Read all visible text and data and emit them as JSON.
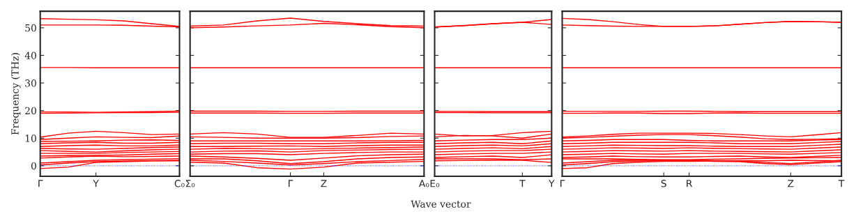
{
  "chart_data": [
    {
      "type": "line",
      "ylabel": "Frequency (THz)",
      "categories": [
        "Γ",
        null,
        "Y",
        null,
        null,
        "C₀"
      ],
      "ylim": [
        -3.8,
        56
      ],
      "yticks": [
        0,
        10,
        20,
        30,
        40,
        50
      ],
      "grid": false,
      "marker": "none",
      "line_style": "solid",
      "ref_lines": [
        {
          "axis": "y",
          "value": 0,
          "color": "#0000ff",
          "line_style": "dotted"
        }
      ],
      "series": [
        {
          "color": "#ff0000",
          "values": [
            53.3,
            53.1,
            52.9,
            52.5,
            51.5,
            50.5
          ]
        },
        {
          "color": "#ff0000",
          "values": [
            51.0,
            51.0,
            51.0,
            50.9,
            50.6,
            50.3
          ]
        },
        {
          "color": "#ff0000",
          "values": [
            35.6,
            35.6,
            35.5,
            35.5,
            35.5,
            35.5
          ]
        },
        {
          "color": "#ff0000",
          "values": [
            19.0,
            19.1,
            19.2,
            19.3,
            19.3,
            19.4
          ]
        },
        {
          "color": "#ff0000",
          "values": [
            19.5,
            19.5,
            19.4,
            19.5,
            19.6,
            19.8
          ]
        },
        {
          "color": "#ff0000",
          "values": [
            10.4,
            11.8,
            12.5,
            12.0,
            11.3,
            11.5
          ]
        },
        {
          "color": "#ff0000",
          "values": [
            9.5,
            10.0,
            10.5,
            10.3,
            10.2,
            10.8
          ]
        },
        {
          "color": "#ff0000",
          "values": [
            8.8,
            8.9,
            9.0,
            9.3,
            9.4,
            9.2
          ]
        },
        {
          "color": "#ff0000",
          "values": [
            8.0,
            8.3,
            8.5,
            8.2,
            8.2,
            8.5
          ]
        },
        {
          "color": "#ff0000",
          "values": [
            7.0,
            7.3,
            7.5,
            7.2,
            7.2,
            7.5
          ]
        },
        {
          "color": "#ff0000",
          "values": [
            6.3,
            6.1,
            6.0,
            6.3,
            6.6,
            6.8
          ]
        },
        {
          "color": "#ff0000",
          "values": [
            5.5,
            5.2,
            5.0,
            5.4,
            5.8,
            6.0
          ]
        },
        {
          "color": "#ff0000",
          "values": [
            4.5,
            4.5,
            4.5,
            4.8,
            5.0,
            5.2
          ]
        },
        {
          "color": "#ff0000",
          "values": [
            3.5,
            3.7,
            3.8,
            3.9,
            4.2,
            4.4
          ]
        },
        {
          "color": "#ff0000",
          "values": [
            2.8,
            3.2,
            3.5,
            3.3,
            3.4,
            3.5
          ]
        },
        {
          "color": "#ff0000",
          "values": [
            1.0,
            1.5,
            2.0,
            2.2,
            2.4,
            2.6
          ]
        },
        {
          "color": "#ff0000",
          "values": [
            0.3,
            1.0,
            1.5,
            1.7,
            1.9,
            2.0
          ]
        },
        {
          "color": "#ff0000",
          "values": [
            -1.0,
            -0.5,
            1.2,
            1.5,
            1.7,
            1.8
          ]
        }
      ]
    },
    {
      "type": "line",
      "xlabel": "Wave vector",
      "categories": [
        "Σ₀",
        null,
        null,
        "Γ",
        "Z",
        null,
        null,
        "A₀"
      ],
      "ylim": [
        -3.8,
        56
      ],
      "yticks": [
        0,
        10,
        20,
        30,
        40,
        50
      ],
      "tick_labels": "x",
      "grid": false,
      "marker": "none",
      "line_style": "solid",
      "ref_lines": [
        {
          "axis": "y",
          "value": 0,
          "color": "#0000ff",
          "line_style": "dotted"
        }
      ],
      "series": [
        {
          "color": "#ff0000",
          "values": [
            50.6,
            51.0,
            52.5,
            53.5,
            52.3,
            51.5,
            50.8,
            50.6
          ]
        },
        {
          "color": "#ff0000",
          "values": [
            50.0,
            50.3,
            50.7,
            51.0,
            51.6,
            51.1,
            50.4,
            50.0
          ]
        },
        {
          "color": "#ff0000",
          "values": [
            35.5,
            35.5,
            35.5,
            35.5,
            35.5,
            35.5,
            35.5,
            35.5
          ]
        },
        {
          "color": "#ff0000",
          "values": [
            19.1,
            19.1,
            19.1,
            19.0,
            19.0,
            19.1,
            19.1,
            19.1
          ]
        },
        {
          "color": "#ff0000",
          "values": [
            19.8,
            19.8,
            19.8,
            19.7,
            19.7,
            19.8,
            19.8,
            19.8
          ]
        },
        {
          "color": "#ff0000",
          "values": [
            11.5,
            12.0,
            11.5,
            10.3,
            10.3,
            11.0,
            11.8,
            11.5
          ]
        },
        {
          "color": "#ff0000",
          "values": [
            10.5,
            10.3,
            10.0,
            10.0,
            10.0,
            10.2,
            10.6,
            10.8
          ]
        },
        {
          "color": "#ff0000",
          "values": [
            9.0,
            9.0,
            9.0,
            9.0,
            9.0,
            9.0,
            9.1,
            9.2
          ]
        },
        {
          "color": "#ff0000",
          "values": [
            8.0,
            8.2,
            8.2,
            8.0,
            8.0,
            8.3,
            8.5,
            8.5
          ]
        },
        {
          "color": "#ff0000",
          "values": [
            7.0,
            7.0,
            7.1,
            7.2,
            7.0,
            7.3,
            7.5,
            7.5
          ]
        },
        {
          "color": "#ff0000",
          "values": [
            6.0,
            6.3,
            6.2,
            6.0,
            6.2,
            6.4,
            6.6,
            6.8
          ]
        },
        {
          "color": "#ff0000",
          "values": [
            5.0,
            5.3,
            5.4,
            5.0,
            5.5,
            5.7,
            5.9,
            6.0
          ]
        },
        {
          "color": "#ff0000",
          "values": [
            4.2,
            4.4,
            4.4,
            4.0,
            4.5,
            4.8,
            5.0,
            5.0
          ]
        },
        {
          "color": "#ff0000",
          "values": [
            3.5,
            3.2,
            2.7,
            2.0,
            2.8,
            3.6,
            4.0,
            4.2
          ]
        },
        {
          "color": "#ff0000",
          "values": [
            2.5,
            2.5,
            1.8,
            0.8,
            1.5,
            2.5,
            3.0,
            3.2
          ]
        },
        {
          "color": "#ff0000",
          "values": [
            2.0,
            1.6,
            1.0,
            0.3,
            0.8,
            1.5,
            1.9,
            2.3
          ]
        },
        {
          "color": "#ff0000",
          "values": [
            1.3,
            1.0,
            -0.7,
            -1.2,
            -0.5,
            1.0,
            1.3,
            1.6
          ]
        }
      ]
    },
    {
      "type": "line",
      "categories": [
        "E₀",
        null,
        null,
        "T",
        "Y"
      ],
      "ylim": [
        -3.8,
        56
      ],
      "yticks": [
        0,
        10,
        20,
        30,
        40,
        50
      ],
      "tick_labels": "x",
      "grid": false,
      "marker": "none",
      "line_style": "solid",
      "ref_lines": [
        {
          "axis": "y",
          "value": 0,
          "color": "#0000ff",
          "line_style": "dotted"
        }
      ],
      "series": [
        {
          "color": "#ff0000",
          "values": [
            50.3,
            50.8,
            51.5,
            52.0,
            53.0
          ]
        },
        {
          "color": "#ff0000",
          "values": [
            50.3,
            50.8,
            51.5,
            52.0,
            51.2
          ]
        },
        {
          "color": "#ff0000",
          "values": [
            35.5,
            35.5,
            35.5,
            35.5,
            35.5
          ]
        },
        {
          "color": "#ff0000",
          "values": [
            19.3,
            19.3,
            19.2,
            19.2,
            19.2
          ]
        },
        {
          "color": "#ff0000",
          "values": [
            19.7,
            19.7,
            19.6,
            19.6,
            19.6
          ]
        },
        {
          "color": "#ff0000",
          "values": [
            11.5,
            10.8,
            11.0,
            12.0,
            12.5
          ]
        },
        {
          "color": "#ff0000",
          "values": [
            10.5,
            11.0,
            10.8,
            10.0,
            11.5
          ]
        },
        {
          "color": "#ff0000",
          "values": [
            9.0,
            9.3,
            9.5,
            9.5,
            10.0
          ]
        },
        {
          "color": "#ff0000",
          "values": [
            8.0,
            8.3,
            8.5,
            8.0,
            9.0
          ]
        },
        {
          "color": "#ff0000",
          "values": [
            7.0,
            7.3,
            7.5,
            7.2,
            8.0
          ]
        },
        {
          "color": "#ff0000",
          "values": [
            6.0,
            6.3,
            6.5,
            6.2,
            7.0
          ]
        },
        {
          "color": "#ff0000",
          "values": [
            5.0,
            5.3,
            5.5,
            5.5,
            6.0
          ]
        },
        {
          "color": "#ff0000",
          "values": [
            4.0,
            4.3,
            4.5,
            4.5,
            5.0
          ]
        },
        {
          "color": "#ff0000",
          "values": [
            3.0,
            3.3,
            3.5,
            3.0,
            4.0
          ]
        },
        {
          "color": "#ff0000",
          "values": [
            2.5,
            2.5,
            2.5,
            2.2,
            2.5
          ]
        },
        {
          "color": "#ff0000",
          "values": [
            1.8,
            1.9,
            2.0,
            2.0,
            1.2
          ]
        }
      ]
    },
    {
      "type": "line",
      "categories": [
        "Γ",
        null,
        null,
        null,
        "S",
        "R",
        null,
        null,
        null,
        "Z",
        null,
        "T"
      ],
      "ylim": [
        -3.8,
        56
      ],
      "yticks": [
        0,
        10,
        20,
        30,
        40,
        50
      ],
      "tick_labels": "x",
      "grid": false,
      "marker": "none",
      "line_style": "solid",
      "ref_lines": [
        {
          "axis": "y",
          "value": 0,
          "color": "#0000ff",
          "line_style": "dotted"
        }
      ],
      "series": [
        {
          "color": "#ff0000",
          "values": [
            53.4,
            53.0,
            52.2,
            51.2,
            50.5,
            50.5,
            50.7,
            51.3,
            51.9,
            52.3,
            52.2,
            52.0
          ]
        },
        {
          "color": "#ff0000",
          "values": [
            51.0,
            50.8,
            50.6,
            50.5,
            50.5,
            50.5,
            50.7,
            51.3,
            51.9,
            52.3,
            52.2,
            52.0
          ]
        },
        {
          "color": "#ff0000",
          "values": [
            35.5,
            35.5,
            35.5,
            35.5,
            35.5,
            35.5,
            35.5,
            35.5,
            35.5,
            35.5,
            35.5,
            35.5
          ]
        },
        {
          "color": "#ff0000",
          "values": [
            19.0,
            19.0,
            19.1,
            19.1,
            18.9,
            18.9,
            19.1,
            19.1,
            19.0,
            19.0,
            19.0,
            19.0
          ]
        },
        {
          "color": "#ff0000",
          "values": [
            19.7,
            19.7,
            19.7,
            19.7,
            19.8,
            19.8,
            19.7,
            19.6,
            19.6,
            19.6,
            19.6,
            19.6
          ]
        },
        {
          "color": "#ff0000",
          "values": [
            10.4,
            10.8,
            11.4,
            11.8,
            11.8,
            11.8,
            11.7,
            11.3,
            10.8,
            10.5,
            11.2,
            12.0
          ]
        },
        {
          "color": "#ff0000",
          "values": [
            10.0,
            10.3,
            10.7,
            11.1,
            11.3,
            11.3,
            10.9,
            10.4,
            9.8,
            9.5,
            9.6,
            9.8
          ]
        },
        {
          "color": "#ff0000",
          "values": [
            9.0,
            9.2,
            9.5,
            9.5,
            9.5,
            9.2,
            9.0,
            9.0,
            9.0,
            9.0,
            9.3,
            9.5
          ]
        },
        {
          "color": "#ff0000",
          "values": [
            8.0,
            8.2,
            8.5,
            8.5,
            8.5,
            8.5,
            8.3,
            8.0,
            8.0,
            8.0,
            8.4,
            8.8
          ]
        },
        {
          "color": "#ff0000",
          "values": [
            7.0,
            7.2,
            7.5,
            7.4,
            7.3,
            7.3,
            7.1,
            7.0,
            7.0,
            7.0,
            7.4,
            7.8
          ]
        },
        {
          "color": "#ff0000",
          "values": [
            6.0,
            6.2,
            6.5,
            6.4,
            6.3,
            6.5,
            6.3,
            6.2,
            6.1,
            6.0,
            6.4,
            6.8
          ]
        },
        {
          "color": "#ff0000",
          "values": [
            5.0,
            5.2,
            5.5,
            5.4,
            5.3,
            5.5,
            5.3,
            5.2,
            5.1,
            5.0,
            5.4,
            5.8
          ]
        },
        {
          "color": "#ff0000",
          "values": [
            4.0,
            4.2,
            4.5,
            4.3,
            4.2,
            4.5,
            4.5,
            4.5,
            4.3,
            4.2,
            4.5,
            4.8
          ]
        },
        {
          "color": "#ff0000",
          "values": [
            3.0,
            3.2,
            3.5,
            3.3,
            3.2,
            3.2,
            3.4,
            3.5,
            3.2,
            3.0,
            3.4,
            3.8
          ]
        },
        {
          "color": "#ff0000",
          "values": [
            2.5,
            2.5,
            2.5,
            2.3,
            2.2,
            2.2,
            2.4,
            2.5,
            2.7,
            2.8,
            2.9,
            3.0
          ]
        },
        {
          "color": "#ff0000",
          "values": [
            1.0,
            1.5,
            2.0,
            2.0,
            2.0,
            2.0,
            1.9,
            1.8,
            1.2,
            0.8,
            1.4,
            2.0
          ]
        },
        {
          "color": "#ff0000",
          "values": [
            0.3,
            0.8,
            1.5,
            1.7,
            1.8,
            1.8,
            1.6,
            1.5,
            0.8,
            0.4,
            1.0,
            1.5
          ]
        },
        {
          "color": "#ff0000",
          "values": [
            -1.0,
            -0.7,
            0.8,
            1.3,
            1.6,
            1.6,
            1.7,
            1.8,
            1.8,
            2.0,
            1.9,
            1.8
          ]
        }
      ]
    }
  ]
}
